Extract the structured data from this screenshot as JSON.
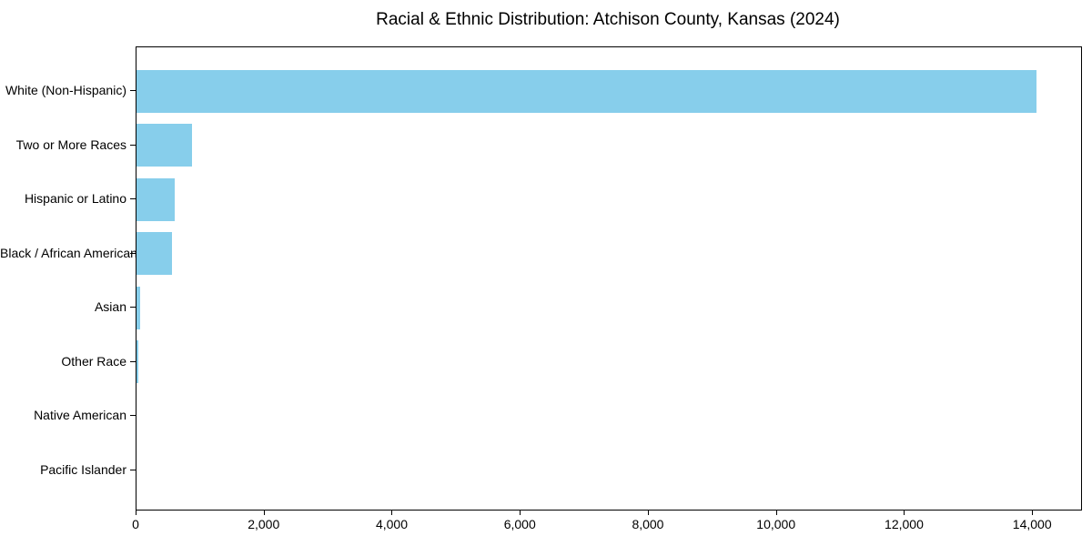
{
  "chart_data": {
    "type": "bar",
    "orientation": "horizontal",
    "title": "Racial & Ethnic Distribution: Atchison County, Kansas (2024)",
    "categories": [
      "White (Non-Hispanic)",
      "Two or More Races",
      "Hispanic or Latino",
      "Black / African American",
      "Asian",
      "Other Race",
      "Native American",
      "Pacific Islander"
    ],
    "values": [
      14050,
      870,
      600,
      560,
      55,
      30,
      0,
      0
    ],
    "xlabel": "",
    "ylabel": "",
    "xlim": [
      0,
      14750
    ],
    "x_ticks": [
      0,
      2000,
      4000,
      6000,
      8000,
      10000,
      12000,
      14000
    ],
    "x_tick_labels": [
      "0",
      "2,000",
      "4,000",
      "6,000",
      "8,000",
      "10,000",
      "12,000",
      "14,000"
    ],
    "bar_color": "#87CEEB",
    "background_color": "#ffffff",
    "axis_color": "#000000",
    "grid": "off",
    "legend": "none"
  }
}
